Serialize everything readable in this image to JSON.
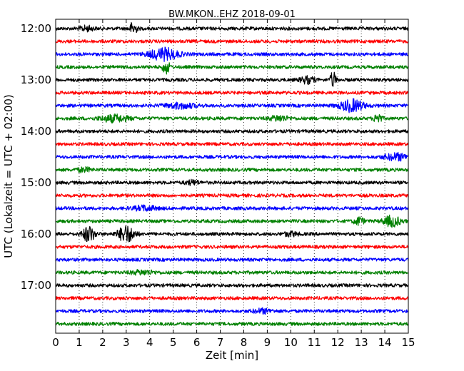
{
  "chart_data": {
    "type": "line",
    "title": "BW.MKON..EHZ 2018-09-01",
    "xlabel": "Zeit  [min]",
    "ylabel": "UTC (Lokalzeit = UTC + 02:00)",
    "xlim": [
      0,
      15
    ],
    "xticks": [
      0,
      1,
      2,
      3,
      4,
      5,
      6,
      7,
      8,
      9,
      10,
      11,
      12,
      13,
      14,
      15
    ],
    "grid_x": true,
    "trace_interval_minutes": 15,
    "trace_colors": [
      "#000000",
      "#ff0000",
      "#0000ff",
      "#008000"
    ],
    "y_tick_labels": [
      "12:00",
      "13:00",
      "14:00",
      "15:00",
      "16:00",
      "17:00"
    ],
    "traces": [
      {
        "start": "12:00",
        "events": [
          {
            "t": 3.3,
            "amp": 1.0,
            "dur": 0.15
          },
          {
            "t": 1.3,
            "amp": 0.35,
            "dur": 0.3
          }
        ]
      },
      {
        "start": "12:15",
        "events": []
      },
      {
        "start": "12:30",
        "events": [
          {
            "t": 4.6,
            "amp": 0.9,
            "dur": 0.6
          }
        ]
      },
      {
        "start": "12:45",
        "events": [
          {
            "t": 4.7,
            "amp": 1.0,
            "dur": 0.15
          }
        ]
      },
      {
        "start": "13:00",
        "events": [
          {
            "t": 10.7,
            "amp": 0.5,
            "dur": 0.3
          },
          {
            "t": 11.8,
            "amp": 1.2,
            "dur": 0.12
          }
        ]
      },
      {
        "start": "13:15",
        "events": []
      },
      {
        "start": "13:30",
        "events": [
          {
            "t": 5.3,
            "amp": 0.4,
            "dur": 0.6
          },
          {
            "t": 12.6,
            "amp": 0.9,
            "dur": 0.5
          }
        ]
      },
      {
        "start": "13:45",
        "events": [
          {
            "t": 2.5,
            "amp": 0.5,
            "dur": 0.6
          },
          {
            "t": 9.5,
            "amp": 0.4,
            "dur": 0.4
          },
          {
            "t": 13.7,
            "amp": 0.8,
            "dur": 0.15
          }
        ]
      },
      {
        "start": "14:00",
        "events": []
      },
      {
        "start": "14:15",
        "events": []
      },
      {
        "start": "14:30",
        "events": [
          {
            "t": 14.5,
            "amp": 0.5,
            "dur": 0.5
          }
        ]
      },
      {
        "start": "14:45",
        "events": [
          {
            "t": 1.2,
            "amp": 0.3,
            "dur": 0.3
          }
        ]
      },
      {
        "start": "15:00",
        "events": [
          {
            "t": 5.8,
            "amp": 0.3,
            "dur": 0.3
          }
        ]
      },
      {
        "start": "15:15",
        "events": []
      },
      {
        "start": "15:30",
        "events": [
          {
            "t": 3.8,
            "amp": 0.35,
            "dur": 0.5
          }
        ]
      },
      {
        "start": "15:45",
        "events": [
          {
            "t": 12.9,
            "amp": 0.6,
            "dur": 0.2
          },
          {
            "t": 14.3,
            "amp": 0.8,
            "dur": 0.35
          }
        ]
      },
      {
        "start": "16:00",
        "events": [
          {
            "t": 1.4,
            "amp": 1.2,
            "dur": 0.25
          },
          {
            "t": 3.0,
            "amp": 1.3,
            "dur": 0.35
          },
          {
            "t": 10.0,
            "amp": 0.3,
            "dur": 0.3
          }
        ]
      },
      {
        "start": "16:15",
        "events": []
      },
      {
        "start": "16:30",
        "events": []
      },
      {
        "start": "16:45",
        "events": [
          {
            "t": 3.7,
            "amp": 0.3,
            "dur": 0.5
          }
        ]
      },
      {
        "start": "17:00",
        "events": []
      },
      {
        "start": "17:15",
        "events": []
      },
      {
        "start": "17:30",
        "events": [
          {
            "t": 8.8,
            "amp": 0.3,
            "dur": 0.4
          }
        ]
      },
      {
        "start": "17:45",
        "events": []
      }
    ]
  }
}
